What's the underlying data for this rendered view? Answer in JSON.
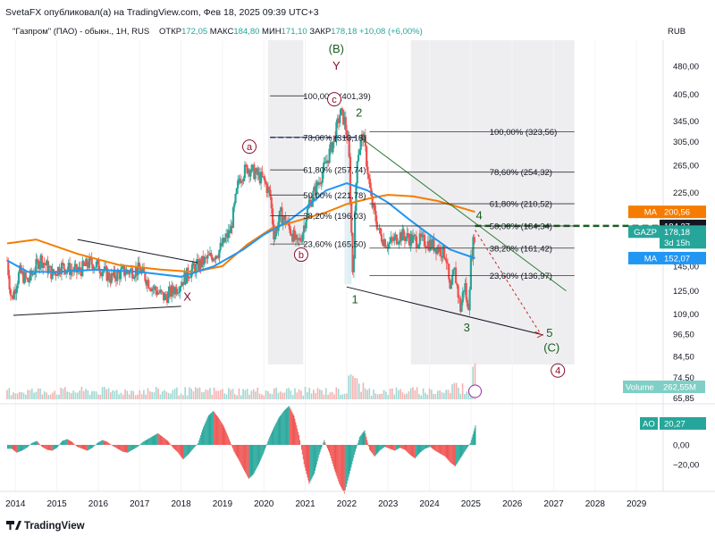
{
  "header": {
    "publisher": "SvetaFX опубликовал(а) на TradingView.com, Фев 18, 2025 09:39 UTC+3",
    "symbol": "\"Газпром\" (ПАО) - обыкн., 1H, RUS",
    "open_label": "ОТКР",
    "open": "172,05",
    "high_label": "МАКС",
    "high": "184,80",
    "low_label": "МИН",
    "low": "171,10",
    "close_label": "ЗАКР",
    "close": "178,18",
    "change": "+10,08 (+6,00%)"
  },
  "colors": {
    "up": "#26a69a",
    "down": "#ef5350",
    "ma_blue": "#2196f3",
    "ma_orange": "#f57c00",
    "wave_red": "#880e2b",
    "wave_green": "#1b5e20",
    "fib_blue": "#1e3fa8"
  },
  "chart_data": {
    "type": "line",
    "title": "\"Газпром\" (ПАО) - обыкн., 1H, RUS",
    "currency": "RUB",
    "scale": "log",
    "ylim": [
      65,
      560
    ],
    "xlim": [
      2013.8,
      2029.6
    ],
    "price_ticks": [
      "480,00",
      "405,00",
      "345,00",
      "305,00",
      "265,00",
      "225,00",
      "185,00",
      "145,00",
      "125,00",
      "109,00",
      "96,50",
      "84,50",
      "74,50",
      "65,85"
    ],
    "year_ticks": [
      "2014",
      "2015",
      "2016",
      "2017",
      "2018",
      "2019",
      "2020",
      "2021",
      "2022",
      "2023",
      "2024",
      "2025",
      "2026",
      "2027",
      "2028",
      "2029"
    ],
    "price_series": [
      {
        "x": 2013.8,
        "y": 150
      },
      {
        "x": 2013.9,
        "y": 118
      },
      {
        "x": 2014.1,
        "y": 140
      },
      {
        "x": 2014.3,
        "y": 132
      },
      {
        "x": 2014.6,
        "y": 152
      },
      {
        "x": 2014.9,
        "y": 138
      },
      {
        "x": 2015.1,
        "y": 145
      },
      {
        "x": 2015.5,
        "y": 140
      },
      {
        "x": 2015.8,
        "y": 148
      },
      {
        "x": 2016.0,
        "y": 145
      },
      {
        "x": 2016.3,
        "y": 135
      },
      {
        "x": 2016.6,
        "y": 140
      },
      {
        "x": 2017.0,
        "y": 142
      },
      {
        "x": 2017.3,
        "y": 128
      },
      {
        "x": 2017.6,
        "y": 120
      },
      {
        "x": 2017.9,
        "y": 128
      },
      {
        "x": 2018.2,
        "y": 140
      },
      {
        "x": 2018.5,
        "y": 148
      },
      {
        "x": 2018.9,
        "y": 158
      },
      {
        "x": 2019.2,
        "y": 180
      },
      {
        "x": 2019.4,
        "y": 245
      },
      {
        "x": 2019.6,
        "y": 262
      },
      {
        "x": 2019.8,
        "y": 252
      },
      {
        "x": 2020.0,
        "y": 242
      },
      {
        "x": 2020.15,
        "y": 222
      },
      {
        "x": 2020.25,
        "y": 172
      },
      {
        "x": 2020.4,
        "y": 198
      },
      {
        "x": 2020.6,
        "y": 184
      },
      {
        "x": 2020.8,
        "y": 165
      },
      {
        "x": 2020.9,
        "y": 172
      },
      {
        "x": 2021.1,
        "y": 212
      },
      {
        "x": 2021.3,
        "y": 236
      },
      {
        "x": 2021.5,
        "y": 268
      },
      {
        "x": 2021.7,
        "y": 312
      },
      {
        "x": 2021.85,
        "y": 364
      },
      {
        "x": 2021.95,
        "y": 345
      },
      {
        "x": 2022.05,
        "y": 295
      },
      {
        "x": 2022.15,
        "y": 135
      },
      {
        "x": 2022.25,
        "y": 280
      },
      {
        "x": 2022.4,
        "y": 320
      },
      {
        "x": 2022.6,
        "y": 212
      },
      {
        "x": 2022.8,
        "y": 175
      },
      {
        "x": 2023.0,
        "y": 165
      },
      {
        "x": 2023.3,
        "y": 175
      },
      {
        "x": 2023.6,
        "y": 170
      },
      {
        "x": 2023.9,
        "y": 168
      },
      {
        "x": 2024.2,
        "y": 162
      },
      {
        "x": 2024.4,
        "y": 155
      },
      {
        "x": 2024.5,
        "y": 122
      },
      {
        "x": 2024.6,
        "y": 142
      },
      {
        "x": 2024.75,
        "y": 112
      },
      {
        "x": 2024.85,
        "y": 132
      },
      {
        "x": 2024.93,
        "y": 108
      },
      {
        "x": 2025.0,
        "y": 150
      },
      {
        "x": 2025.1,
        "y": 180
      }
    ],
    "ma_blue": {
      "label": "MA",
      "value": "152,07",
      "points": [
        {
          "x": 2013.8,
          "y": 150
        },
        {
          "x": 2014.3,
          "y": 140
        },
        {
          "x": 2015.0,
          "y": 140
        },
        {
          "x": 2016.0,
          "y": 142
        },
        {
          "x": 2017.0,
          "y": 140
        },
        {
          "x": 2018.0,
          "y": 136
        },
        {
          "x": 2018.8,
          "y": 145
        },
        {
          "x": 2019.5,
          "y": 160
        },
        {
          "x": 2020.0,
          "y": 175
        },
        {
          "x": 2020.6,
          "y": 190
        },
        {
          "x": 2021.0,
          "y": 205
        },
        {
          "x": 2021.5,
          "y": 228
        },
        {
          "x": 2022.0,
          "y": 238
        },
        {
          "x": 2022.5,
          "y": 228
        },
        {
          "x": 2023.0,
          "y": 212
        },
        {
          "x": 2023.5,
          "y": 192
        },
        {
          "x": 2024.0,
          "y": 175
        },
        {
          "x": 2024.5,
          "y": 160
        },
        {
          "x": 2025.1,
          "y": 152
        }
      ]
    },
    "ma_orange": {
      "label": "MA",
      "value": "200,56",
      "points": [
        {
          "x": 2013.8,
          "y": 166
        },
        {
          "x": 2014.5,
          "y": 170
        },
        {
          "x": 2015.5,
          "y": 156
        },
        {
          "x": 2016.5,
          "y": 146
        },
        {
          "x": 2017.5,
          "y": 142
        },
        {
          "x": 2018.3,
          "y": 140
        },
        {
          "x": 2019.0,
          "y": 145
        },
        {
          "x": 2019.6,
          "y": 165
        },
        {
          "x": 2020.2,
          "y": 182
        },
        {
          "x": 2020.8,
          "y": 190
        },
        {
          "x": 2021.5,
          "y": 200
        },
        {
          "x": 2022.0,
          "y": 210
        },
        {
          "x": 2022.6,
          "y": 218
        },
        {
          "x": 2023.0,
          "y": 222
        },
        {
          "x": 2023.6,
          "y": 220
        },
        {
          "x": 2024.2,
          "y": 214
        },
        {
          "x": 2024.8,
          "y": 205
        },
        {
          "x": 2025.1,
          "y": 200.56
        }
      ]
    },
    "fib_left": {
      "label_pos": "left",
      "levels": [
        {
          "text": "100,00% (401,39)",
          "value": 401.39
        },
        {
          "text": "78,60% (313,18)",
          "value": 313.18
        },
        {
          "text": "61,80% (257,74)",
          "value": 257.74
        },
        {
          "text": "50,00% (221,78)",
          "value": 221.78
        },
        {
          "text": "38,20% (196,03)",
          "value": 196.03
        },
        {
          "text": "23,60% (165,50)",
          "value": 165.5
        }
      ]
    },
    "fib_right": {
      "label_pos": "right",
      "levels": [
        {
          "text": "100,00% (323,56)",
          "value": 323.56
        },
        {
          "text": "78,60% (254,32)",
          "value": 254.32
        },
        {
          "text": "61,80% (210,52)",
          "value": 210.52
        },
        {
          "text": "50,00% (184,34)",
          "value": 184.34
        },
        {
          "text": "38,20% (161,42)",
          "value": 161.42
        },
        {
          "text": "23,60% (136,97)",
          "value": 136.97
        }
      ]
    },
    "wave_labels": [
      {
        "text": "(B)",
        "x": 2021.75,
        "y": 520,
        "style": "green"
      },
      {
        "text": "Y",
        "x": 2021.75,
        "y": 470,
        "style": "red"
      },
      {
        "text": "c",
        "x": 2021.7,
        "y": 385,
        "style": "red-circle"
      },
      {
        "text": "a",
        "x": 2019.65,
        "y": 290,
        "style": "red-circle"
      },
      {
        "text": "b",
        "x": 2020.9,
        "y": 152,
        "style": "red-circle"
      },
      {
        "text": "X",
        "x": 2018.15,
        "y": 118,
        "style": "red"
      },
      {
        "text": "2",
        "x": 2022.3,
        "y": 355,
        "style": "green"
      },
      {
        "text": "1",
        "x": 2022.2,
        "y": 116,
        "style": "green"
      },
      {
        "text": "3",
        "x": 2024.9,
        "y": 98,
        "style": "green"
      },
      {
        "text": "4",
        "x": 2025.2,
        "y": 192,
        "style": "green"
      },
      {
        "text": "5",
        "x": 2026.9,
        "y": 95,
        "style": "green"
      },
      {
        "text": "(C)",
        "x": 2026.95,
        "y": 87,
        "style": "green"
      },
      {
        "text": "4",
        "x": 2027.1,
        "y": 76,
        "style": "red-circle"
      }
    ],
    "value_tags": [
      {
        "text": "MA",
        "value": "200,56",
        "kind": "orange"
      },
      {
        "text": "",
        "value": "184,37",
        "kind": "dark"
      },
      {
        "text": "GAZP",
        "value": "178,18",
        "sub": "3d 15h",
        "kind": "teal"
      },
      {
        "text": "MA",
        "value": "152,07",
        "kind": "blue"
      }
    ],
    "volume": {
      "label": "Volume",
      "value": "262,55M"
    },
    "ao": {
      "label": "AO",
      "value": "20,27",
      "ticks": [
        "0,00",
        "−20,00"
      ],
      "values": [
        -4,
        -8,
        -6,
        -3,
        2,
        4,
        -2,
        -5,
        -6,
        -3,
        4,
        6,
        3,
        -2,
        -4,
        -6,
        -3,
        2,
        5,
        3,
        -1,
        -4,
        -7,
        -8,
        -5,
        -2,
        3,
        6,
        9,
        12,
        8,
        4,
        -3,
        -8,
        -15,
        -10,
        -4,
        2,
        18,
        30,
        35,
        28,
        20,
        8,
        -6,
        -15,
        -25,
        -35,
        -30,
        -20,
        -8,
        6,
        18,
        28,
        35,
        40,
        30,
        10,
        -20,
        -40,
        -30,
        -10,
        5,
        -8,
        -25,
        -40,
        -50,
        -30,
        -10,
        8,
        15,
        -5,
        -12,
        -6,
        -2,
        -4,
        -6,
        -3,
        -5,
        -10,
        -14,
        -8,
        -4,
        -2,
        -6,
        -9,
        -12,
        -18,
        -22,
        -14,
        -6,
        2,
        20
      ]
    }
  },
  "footer": {
    "brand": "TradingView"
  }
}
